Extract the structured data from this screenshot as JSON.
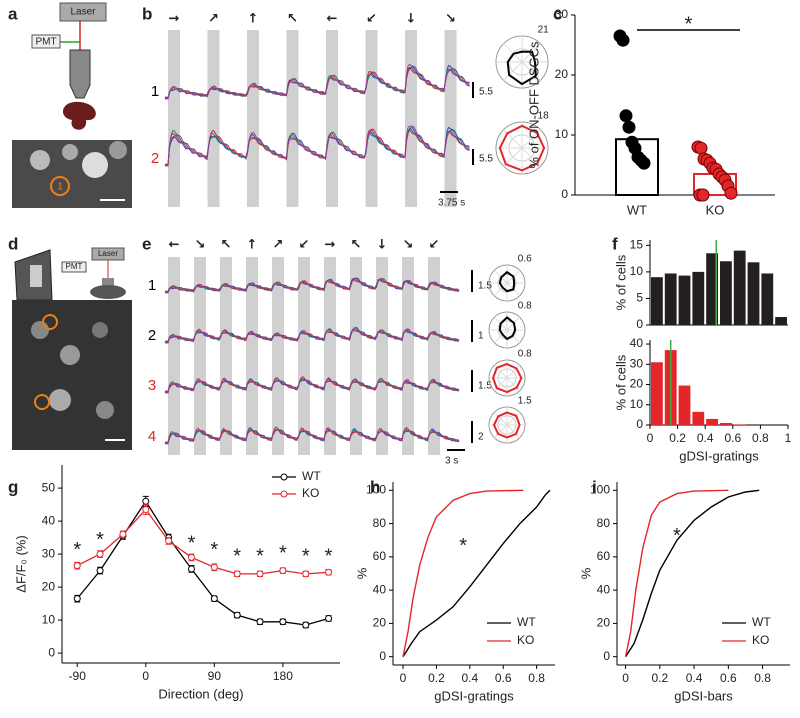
{
  "panel_labels": [
    "a",
    "b",
    "c",
    "d",
    "e",
    "f",
    "g",
    "h",
    "i"
  ],
  "panel_a": {
    "laser": "Laser",
    "pmt": "PMT",
    "cell": "1"
  },
  "panel_b": {
    "directions": [
      "→",
      "↗",
      "↑",
      "↖",
      "←",
      "↙",
      "↓",
      "↘"
    ],
    "rows": [
      {
        "label": "1",
        "color": "#000000",
        "scale": "5.5",
        "polar_max": "21"
      },
      {
        "label": "2",
        "color": "#e3262a",
        "scale": "5.5",
        "polar_max": "18"
      }
    ],
    "time_scale": "3.75 s"
  },
  "panel_d": {
    "laser": "Laser",
    "pmt": "PMT"
  },
  "panel_e": {
    "directions": [
      "←",
      "↘",
      "↖",
      "↑",
      "↗",
      "↙",
      "→",
      "↖",
      "↓",
      "↘",
      "↙"
    ],
    "rows": [
      {
        "label": "1",
        "color": "#000000",
        "scale": "1.5",
        "polar_max": "0.6"
      },
      {
        "label": "2",
        "color": "#000000",
        "scale": "1",
        "polar_max": "0.8"
      },
      {
        "label": "3",
        "color": "#e3262a",
        "scale": "1.5",
        "polar_max": "0.8"
      },
      {
        "label": "4",
        "color": "#e3262a",
        "scale": "2",
        "polar_max": "1.5"
      }
    ],
    "time_scale": "3 s"
  },
  "chart_data": [
    {
      "type": "bar",
      "categories": [
        "WT",
        "KO"
      ],
      "values": [
        9.3,
        3.5
      ],
      "colors": [
        "#000000",
        "#e3262a"
      ],
      "points": [
        [
          26.5,
          25.8,
          13.2,
          11.3,
          8.8,
          7.8,
          6.3,
          5.8,
          5.3
        ],
        [
          8,
          7.8,
          6,
          5.8,
          5.3,
          4.5,
          4.3,
          3.5,
          3,
          2.5,
          1.5,
          0.3,
          0,
          0
        ]
      ],
      "ylim": [
        0,
        30
      ],
      "yticks": [
        0,
        10,
        20,
        30
      ],
      "ylabel": "% of ON-OFF DSGCs",
      "significance": "*"
    },
    {
      "type": "histogram",
      "bins": [
        0,
        0.1,
        0.2,
        0.3,
        0.4,
        0.5,
        0.6,
        0.7,
        0.8,
        0.9,
        1
      ],
      "values": [
        9,
        9.7,
        9.3,
        10,
        13.5,
        12,
        14,
        11.8,
        9.7,
        1.5
      ],
      "color": "#231f20",
      "vline": 0.48,
      "vline_color": "#3fae49",
      "xlim": [
        0,
        1
      ],
      "ylim": [
        0,
        16
      ],
      "yticks": [
        0,
        5,
        10,
        15
      ],
      "ylabel": "% of cells"
    },
    {
      "type": "histogram",
      "bins": [
        0,
        0.1,
        0.2,
        0.3,
        0.4,
        0.5,
        0.6,
        0.7,
        0.8,
        0.9,
        1
      ],
      "values": [
        31,
        37,
        19.5,
        6.5,
        3,
        1,
        0.3,
        0,
        0,
        0
      ],
      "color": "#e3262a",
      "vline": 0.15,
      "vline_color": "#3fae49",
      "xlim": [
        0,
        1
      ],
      "ylim": [
        0,
        42
      ],
      "yticks": [
        0,
        10,
        20,
        30,
        40
      ],
      "xticks": [
        0,
        0.2,
        0.4,
        0.6,
        0.8,
        1
      ],
      "xlabel": "gDSI-gratings",
      "ylabel": "% of cells"
    },
    {
      "type": "line",
      "x": [
        -90,
        -60,
        -30,
        0,
        30,
        60,
        90,
        120,
        150,
        180,
        210,
        240
      ],
      "series": [
        {
          "name": "WT",
          "color": "#000000",
          "values": [
            16.5,
            25,
            35.5,
            46,
            35,
            25.5,
            16.5,
            11.5,
            9.5,
            9.5,
            8.5,
            10.5
          ],
          "errors": [
            1,
            1,
            1,
            1.5,
            1,
            1,
            0.8,
            0.8,
            0.8,
            0.8,
            0.8,
            0.8
          ]
        },
        {
          "name": "KO",
          "color": "#e3262a",
          "values": [
            26.5,
            30,
            36,
            43.5,
            34,
            29,
            26,
            24,
            24,
            25,
            24,
            24.5
          ],
          "errors": [
            1,
            1,
            1,
            1.5,
            1,
            1,
            1,
            0.8,
            0.8,
            0.8,
            0.8,
            0.8
          ]
        }
      ],
      "xlim": [
        -110,
        255
      ],
      "ylim": [
        -3,
        57
      ],
      "xticks": [
        -90,
        0,
        90,
        180
      ],
      "yticks": [
        0,
        10,
        20,
        30,
        40,
        50
      ],
      "xlabel": "Direction (deg)",
      "ylabel": "ΔF/F₀ (%)",
      "legend": "upper right",
      "annotations": [
        {
          "x": -90,
          "y": 31,
          "text": "*"
        },
        {
          "x": -60,
          "y": 34,
          "text": "*"
        },
        {
          "x": 60,
          "y": 33,
          "text": "*"
        },
        {
          "x": 90,
          "y": 31,
          "text": "*"
        },
        {
          "x": 120,
          "y": 29,
          "text": "*"
        },
        {
          "x": 150,
          "y": 29,
          "text": "*"
        },
        {
          "x": 180,
          "y": 30,
          "text": "*"
        },
        {
          "x": 210,
          "y": 29,
          "text": "*"
        },
        {
          "x": 240,
          "y": 29,
          "text": "*"
        }
      ]
    },
    {
      "type": "cdf",
      "series": [
        {
          "name": "WT",
          "color": "#000000",
          "x": [
            0,
            0.05,
            0.1,
            0.2,
            0.3,
            0.4,
            0.5,
            0.6,
            0.7,
            0.8,
            0.85,
            0.88
          ],
          "values": [
            0,
            8,
            15,
            22,
            30,
            42,
            55,
            68,
            80,
            90,
            97,
            100
          ]
        },
        {
          "name": "KO",
          "color": "#e3262a",
          "x": [
            0,
            0.03,
            0.06,
            0.1,
            0.15,
            0.2,
            0.3,
            0.4,
            0.5,
            0.72
          ],
          "values": [
            0,
            15,
            35,
            55,
            72,
            84,
            94,
            98,
            99.5,
            100
          ]
        }
      ],
      "xlim": [
        -0.06,
        0.91
      ],
      "ylim": [
        -5,
        105
      ],
      "xticks": [
        0,
        0.2,
        0.4,
        0.6,
        0.8
      ],
      "yticks": [
        0,
        20,
        40,
        60,
        80,
        100
      ],
      "xlabel": "gDSI-gratings",
      "ylabel": "%",
      "legend": "lower right",
      "annotations": [
        {
          "x": 0.36,
          "y": 66,
          "text": "*"
        }
      ]
    },
    {
      "type": "cdf",
      "series": [
        {
          "name": "WT",
          "color": "#000000",
          "x": [
            0,
            0.05,
            0.1,
            0.15,
            0.2,
            0.3,
            0.4,
            0.5,
            0.6,
            0.7,
            0.78
          ],
          "values": [
            0,
            8,
            22,
            38,
            52,
            70,
            82,
            90,
            96,
            99,
            100
          ]
        },
        {
          "name": "KO",
          "color": "#e3262a",
          "x": [
            0,
            0.03,
            0.06,
            0.1,
            0.15,
            0.2,
            0.3,
            0.4,
            0.6
          ],
          "values": [
            0,
            15,
            40,
            65,
            85,
            93,
            98,
            99.5,
            100
          ]
        }
      ],
      "xlim": [
        -0.05,
        0.96
      ],
      "ylim": [
        -5,
        105
      ],
      "xticks": [
        0,
        0.2,
        0.4,
        0.6,
        0.8
      ],
      "yticks": [
        0,
        20,
        40,
        60,
        80,
        100
      ],
      "xlabel": "gDSI-bars",
      "ylabel": "%",
      "legend": "lower right",
      "annotations": [
        {
          "x": 0.3,
          "y": 72,
          "text": "*"
        }
      ]
    }
  ]
}
